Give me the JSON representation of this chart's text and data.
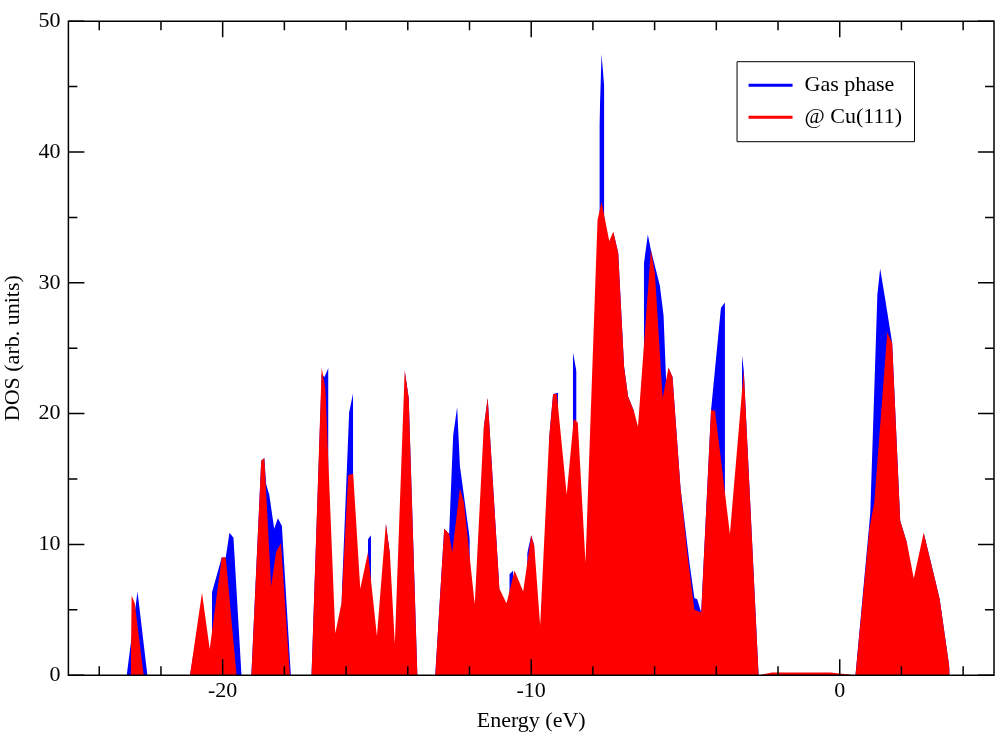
{
  "chart_data": {
    "type": "area",
    "xlabel": "Energy (eV)",
    "ylabel": "DOS (arb. units)",
    "xlim": [
      -25,
      5
    ],
    "ylim": [
      0,
      50
    ],
    "xticks": [
      {
        "value": -24,
        "label": null
      },
      {
        "value": -22,
        "label": null
      },
      -20,
      {
        "value": -18,
        "label": null
      },
      {
        "value": -16,
        "label": null
      },
      {
        "value": -14,
        "label": null
      },
      {
        "value": -12,
        "label": null
      },
      -10,
      {
        "value": -8,
        "label": null
      },
      {
        "value": -6,
        "label": null
      },
      {
        "value": -4,
        "label": null
      },
      {
        "value": -2,
        "label": null
      },
      0,
      {
        "value": 2,
        "label": null
      },
      {
        "value": 4,
        "label": null
      }
    ],
    "yticks": [
      0,
      {
        "value": 5,
        "label": null
      },
      10,
      {
        "value": 15,
        "label": null
      },
      20,
      {
        "value": 25,
        "label": null
      },
      30,
      {
        "value": 35,
        "label": null
      },
      40,
      {
        "value": 45,
        "label": null
      },
      50
    ],
    "grid": false,
    "legend": "top right",
    "series": [
      {
        "name": "Gas phase",
        "color": "#0000ff",
        "x": [
          -23.11,
          -22.76,
          -22.44,
          -21.06,
          -20.67,
          -20.39,
          -20.35,
          -20.03,
          -19.9,
          -19.78,
          -19.65,
          -19.39,
          -19.07,
          -18.75,
          -18.65,
          -18.59,
          -18.49,
          -18.33,
          -18.21,
          -18.08,
          -17.79,
          -17.12,
          -16.79,
          -16.7,
          -16.57,
          -16.38,
          -16.15,
          -15.9,
          -15.77,
          -15.54,
          -15.29,
          -15.19,
          -15.0,
          -14.71,
          -14.58,
          -14.42,
          -14.1,
          -13.97,
          -13.69,
          -13.11,
          -12.82,
          -12.66,
          -12.53,
          -12.4,
          -12.31,
          -11.99,
          -11.83,
          -11.54,
          -11.41,
          -11.03,
          -10.8,
          -10.71,
          -10.58,
          -10.26,
          -10.13,
          -10.0,
          -9.9,
          -9.71,
          -9.42,
          -9.29,
          -9.13,
          -8.85,
          -8.65,
          -8.53,
          -8.24,
          -7.79,
          -7.72,
          -7.63,
          -7.47,
          -7.34,
          -7.18,
          -6.99,
          -6.86,
          -6.67,
          -6.54,
          -6.35,
          -6.22,
          -6.12,
          -5.83,
          -5.71,
          -5.61,
          -5.55,
          -5.42,
          -5.16,
          -4.87,
          -4.71,
          -4.62,
          -4.49,
          -4.17,
          -3.85,
          -3.72,
          -3.56,
          -3.17,
          -3.11,
          -2.63,
          -2.2,
          -0.3,
          0.51,
          0.99,
          1.22,
          1.31,
          1.47,
          1.7,
          1.96,
          2.18,
          2.4,
          2.72,
          3.08,
          3.24,
          3.56
        ],
        "values": [
          0,
          6.4,
          0,
          0,
          5.5,
          null,
          6.3,
          9.0,
          9.0,
          10.9,
          10.5,
          0,
          0,
          16.4,
          16.6,
          14.6,
          13.8,
          11.2,
          12.0,
          11.4,
          0,
          0,
          23.0,
          22.8,
          23.5,
          null,
          5.5,
          20.1,
          21.6,
          null,
          10.4,
          10.7,
          null,
          11.6,
          9.3,
          null,
          23.3,
          21.2,
          0,
          0,
          11.2,
          10.8,
          18.3,
          20.5,
          16.0,
          10.4,
          null,
          18.9,
          21.2,
          6.6,
          null,
          7.7,
          8.0,
          null,
          9.3,
          10.7,
          9.9,
          null,
          18.1,
          21.5,
          21.6,
          null,
          24.7,
          23.2,
          null,
          42.0,
          47.5,
          44.9,
          null,
          33.9,
          32.3,
          23.6,
          21.3,
          20.2,
          null,
          31.4,
          33.7,
          32.5,
          29.8,
          27.5,
          21.5,
          23.5,
          22.8,
          14.3,
          8.6,
          5.9,
          5.8,
          4.8,
          20.3,
          28.1,
          28.5,
          null,
          24.5,
          23.3,
          0,
          0.1,
          0.1,
          0,
          12.4,
          29.1,
          31.1,
          28.8,
          25.4,
          11.8,
          10.1,
          null,
          10.9,
          7.4,
          5.8,
          0.5
        ]
      },
      {
        "name": "@ Cu(111)",
        "color": "#ff0000",
        "x": [
          -22.98,
          -22.95,
          -22.85,
          -22.56,
          -21.06,
          -20.67,
          -20.42,
          -20.03,
          -19.9,
          -19.55,
          -19.07,
          -18.75,
          -18.65,
          -18.43,
          -18.27,
          -18.11,
          -17.82,
          -17.12,
          -16.79,
          -16.67,
          -16.35,
          -16.15,
          -15.93,
          -15.77,
          -15.54,
          -15.29,
          -15.0,
          -14.71,
          -14.58,
          -14.42,
          -14.1,
          -13.97,
          -13.69,
          -13.11,
          -12.82,
          -12.66,
          -12.56,
          -12.31,
          -12.18,
          -11.83,
          -11.54,
          -11.41,
          -11.03,
          -10.8,
          -10.54,
          -10.26,
          -10.0,
          -9.9,
          -9.71,
          -9.42,
          -9.29,
          -9.17,
          -8.85,
          -8.62,
          -8.49,
          -8.24,
          -7.85,
          -7.72,
          -7.47,
          -7.34,
          -7.18,
          -6.99,
          -6.86,
          -6.67,
          -6.54,
          -6.12,
          -5.99,
          -5.74,
          -5.55,
          -5.42,
          -5.16,
          -4.94,
          -4.71,
          -4.49,
          -4.17,
          -4.04,
          -3.56,
          -3.11,
          -2.63,
          -2.2,
          -0.3,
          0.51,
          0.96,
          1.12,
          1.54,
          1.7,
          1.96,
          2.18,
          2.4,
          2.72,
          3.08,
          3.24,
          3.56
        ],
        "values": [
          0,
          6.1,
          5.5,
          0,
          0,
          6.3,
          2.0,
          9.0,
          9.0,
          0,
          0,
          16.4,
          16.6,
          6.8,
          9.4,
          10.1,
          0,
          0,
          23.5,
          21.9,
          3.2,
          5.5,
          15.3,
          15.4,
          6.6,
          9.4,
          3.0,
          11.6,
          9.3,
          2.4,
          23.3,
          21.2,
          0,
          0,
          11.2,
          10.8,
          9.4,
          14.3,
          13.2,
          5.4,
          18.9,
          21.2,
          6.6,
          5.5,
          8.0,
          6.4,
          10.7,
          9.9,
          3.8,
          18.1,
          21.5,
          21.5,
          13.8,
          19.6,
          19.3,
          8.6,
          34.8,
          36.2,
          33.2,
          33.9,
          32.3,
          23.6,
          21.3,
          20.2,
          19.0,
          32.5,
          30.7,
          21.2,
          23.5,
          22.8,
          14.3,
          9.3,
          5.0,
          4.8,
          20.3,
          20.2,
          10.8,
          23.3,
          0,
          0.2,
          0.2,
          0,
          11.2,
          13.2,
          26.2,
          25.4,
          11.8,
          10.1,
          7.4,
          10.9,
          7.4,
          5.8,
          0.5
        ]
      }
    ]
  }
}
